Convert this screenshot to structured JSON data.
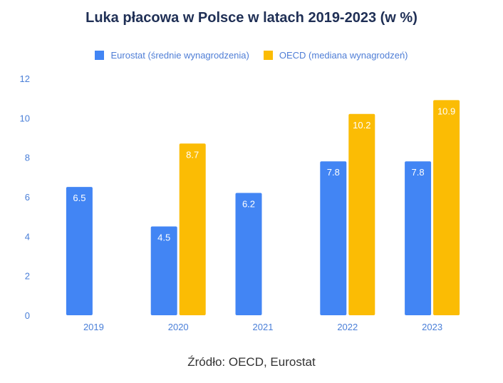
{
  "title": "Luka płacowa w Polsce w latach 2019-2023 (w %)",
  "source": "Źródło: OECD, Eurostat",
  "colors": {
    "eurostat": "#4285f4",
    "oecd": "#fbbc04",
    "axis_text": "#4a7fd8"
  },
  "chart_data": {
    "type": "bar",
    "title": "Luka płacowa w Polsce w latach 2019-2023 (w %)",
    "categories": [
      "2019",
      "2020",
      "2021",
      "2022",
      "2023"
    ],
    "series": [
      {
        "name": "Eurostat (średnie wynagrodzenia)",
        "values": [
          6.5,
          4.5,
          6.2,
          7.8,
          7.8
        ]
      },
      {
        "name": "OECD (mediana wynagrodzeń)",
        "values": [
          null,
          8.7,
          null,
          10.2,
          10.9
        ]
      }
    ],
    "ylim": [
      0,
      12
    ],
    "yticks": [
      0,
      2,
      4,
      6,
      8,
      10,
      12
    ],
    "grid": false,
    "legend": "top-center"
  }
}
